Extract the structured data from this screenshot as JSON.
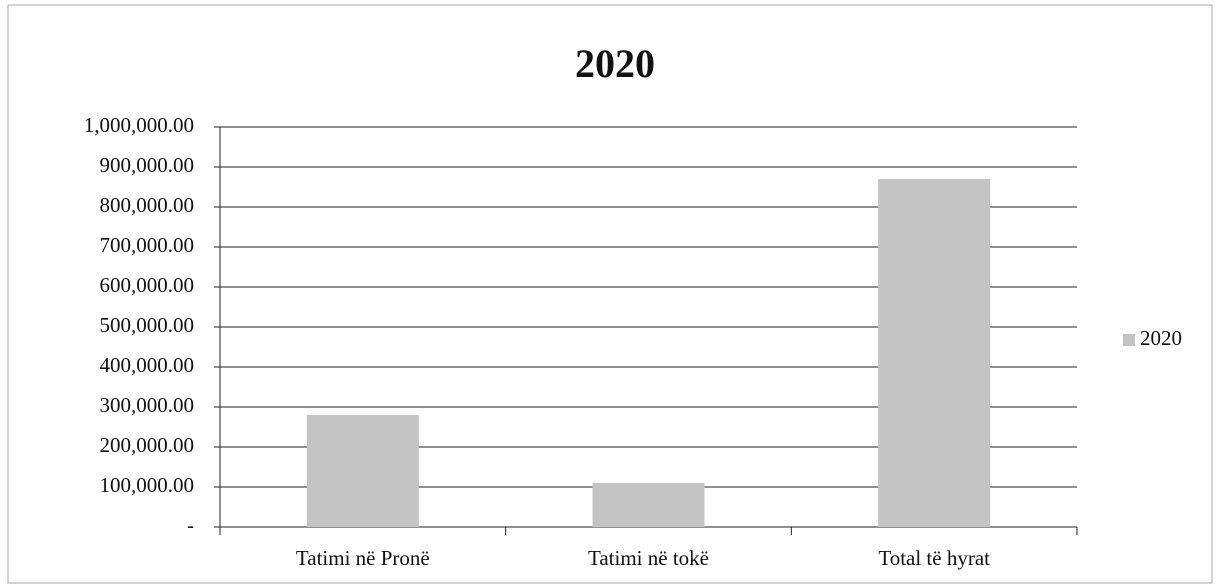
{
  "chart_data": {
    "type": "bar",
    "title": "2020",
    "categories": [
      "Tatimi në Pronë",
      "Tatimi në tokë",
      "Total të hyrat"
    ],
    "series": [
      {
        "name": "2020",
        "color": "#c4c4c4",
        "values": [
          280000,
          110000,
          870000
        ]
      }
    ],
    "ylim": [
      0,
      1000000
    ],
    "yticks": [
      {
        "value": 0,
        "label": "-"
      },
      {
        "value": 100000,
        "label": "100,000.00"
      },
      {
        "value": 200000,
        "label": "200,000.00"
      },
      {
        "value": 300000,
        "label": "300,000.00"
      },
      {
        "value": 400000,
        "label": "400,000.00"
      },
      {
        "value": 500000,
        "label": "500,000.00"
      },
      {
        "value": 600000,
        "label": "600,000.00"
      },
      {
        "value": 700000,
        "label": "700,000.00"
      },
      {
        "value": 800000,
        "label": "800,000.00"
      },
      {
        "value": 900000,
        "label": "900,000.00"
      },
      {
        "value": 1000000,
        "label": "1,000,000.00"
      }
    ],
    "grid": true,
    "legend": "right"
  }
}
